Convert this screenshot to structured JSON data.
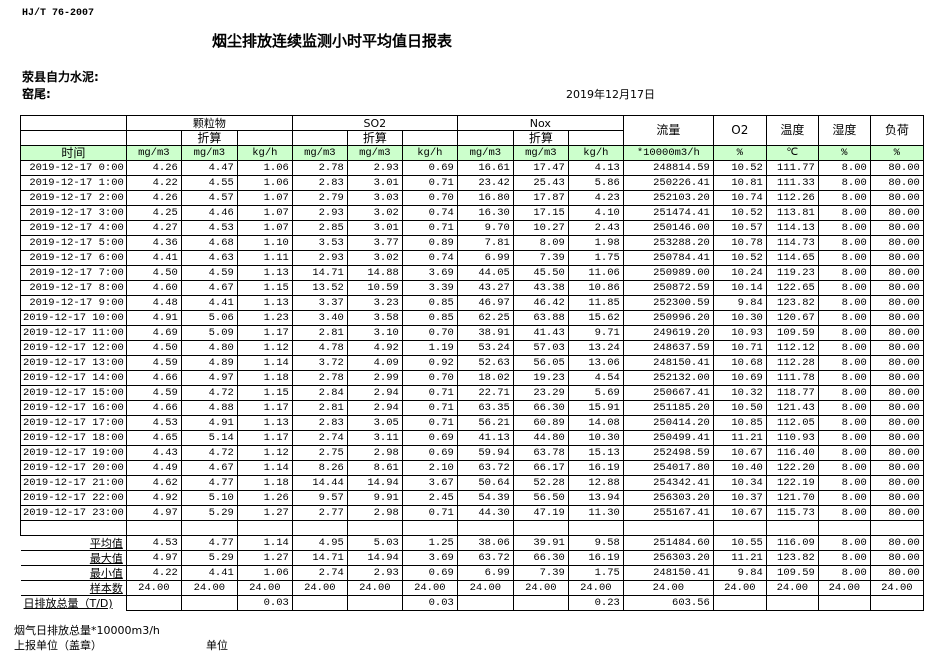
{
  "standard": "HJ/T  76-2007",
  "title": "烟尘排放连续监测小时平均值日报表",
  "company": "荥县自力水泥:",
  "kiln": "窑尾:",
  "date": "2019年12月17日",
  "header": {
    "particulate": "颗粒物",
    "so2": "SO2",
    "nox": "Nox",
    "converted": "折算",
    "flow": "流量",
    "o2": "O2",
    "temperature": "温度",
    "humidity": "湿度",
    "load": "负荷",
    "time": "时间",
    "units": [
      "mg/m3",
      "mg/m3",
      "kg/h",
      "mg/m3",
      "mg/m3",
      "kg/h",
      "mg/m3",
      "mg/m3",
      "kg/h",
      "*10000m3/h",
      "%",
      "℃",
      "%",
      "%"
    ]
  },
  "rows": [
    [
      "2019-12-17 0:00",
      "4.26",
      "4.47",
      "1.06",
      "2.78",
      "2.93",
      "0.69",
      "16.61",
      "17.47",
      "4.13",
      "248814.59",
      "10.52",
      "111.77",
      "8.00",
      "80.00"
    ],
    [
      "2019-12-17 1:00",
      "4.22",
      "4.55",
      "1.06",
      "2.83",
      "3.01",
      "0.71",
      "23.42",
      "25.43",
      "5.86",
      "250226.41",
      "10.81",
      "111.33",
      "8.00",
      "80.00"
    ],
    [
      "2019-12-17 2:00",
      "4.26",
      "4.57",
      "1.07",
      "2.79",
      "3.03",
      "0.70",
      "16.80",
      "17.87",
      "4.23",
      "252103.20",
      "10.74",
      "112.26",
      "8.00",
      "80.00"
    ],
    [
      "2019-12-17 3:00",
      "4.25",
      "4.46",
      "1.07",
      "2.93",
      "3.02",
      "0.74",
      "16.30",
      "17.15",
      "4.10",
      "251474.41",
      "10.52",
      "113.81",
      "8.00",
      "80.00"
    ],
    [
      "2019-12-17 4:00",
      "4.27",
      "4.53",
      "1.07",
      "2.85",
      "3.01",
      "0.71",
      "9.70",
      "10.27",
      "2.43",
      "250146.00",
      "10.57",
      "114.13",
      "8.00",
      "80.00"
    ],
    [
      "2019-12-17 5:00",
      "4.36",
      "4.68",
      "1.10",
      "3.53",
      "3.77",
      "0.89",
      "7.81",
      "8.09",
      "1.98",
      "253288.20",
      "10.78",
      "114.73",
      "8.00",
      "80.00"
    ],
    [
      "2019-12-17 6:00",
      "4.41",
      "4.63",
      "1.11",
      "2.93",
      "3.02",
      "0.74",
      "6.99",
      "7.39",
      "1.75",
      "250784.41",
      "10.52",
      "114.65",
      "8.00",
      "80.00"
    ],
    [
      "2019-12-17 7:00",
      "4.50",
      "4.59",
      "1.13",
      "14.71",
      "14.88",
      "3.69",
      "44.05",
      "45.50",
      "11.06",
      "250989.00",
      "10.24",
      "119.23",
      "8.00",
      "80.00"
    ],
    [
      "2019-12-17 8:00",
      "4.60",
      "4.67",
      "1.15",
      "13.52",
      "10.59",
      "3.39",
      "43.27",
      "43.38",
      "10.86",
      "250872.59",
      "10.14",
      "122.65",
      "8.00",
      "80.00"
    ],
    [
      "2019-12-17 9:00",
      "4.48",
      "4.41",
      "1.13",
      "3.37",
      "3.23",
      "0.85",
      "46.97",
      "46.42",
      "11.85",
      "252300.59",
      "9.84",
      "123.82",
      "8.00",
      "80.00"
    ],
    [
      "2019-12-17 10:00",
      "4.91",
      "5.06",
      "1.23",
      "3.40",
      "3.58",
      "0.85",
      "62.25",
      "63.88",
      "15.62",
      "250996.20",
      "10.30",
      "120.67",
      "8.00",
      "80.00"
    ],
    [
      "2019-12-17 11:00",
      "4.69",
      "5.09",
      "1.17",
      "2.81",
      "3.10",
      "0.70",
      "38.91",
      "41.43",
      "9.71",
      "249619.20",
      "10.93",
      "109.59",
      "8.00",
      "80.00"
    ],
    [
      "2019-12-17 12:00",
      "4.50",
      "4.80",
      "1.12",
      "4.78",
      "4.92",
      "1.19",
      "53.24",
      "57.03",
      "13.24",
      "248637.59",
      "10.71",
      "112.12",
      "8.00",
      "80.00"
    ],
    [
      "2019-12-17 13:00",
      "4.59",
      "4.89",
      "1.14",
      "3.72",
      "4.09",
      "0.92",
      "52.63",
      "56.05",
      "13.06",
      "248150.41",
      "10.68",
      "112.28",
      "8.00",
      "80.00"
    ],
    [
      "2019-12-17 14:00",
      "4.66",
      "4.97",
      "1.18",
      "2.78",
      "2.99",
      "0.70",
      "18.02",
      "19.23",
      "4.54",
      "252132.00",
      "10.69",
      "111.78",
      "8.00",
      "80.00"
    ],
    [
      "2019-12-17 15:00",
      "4.59",
      "4.72",
      "1.15",
      "2.84",
      "2.94",
      "0.71",
      "22.71",
      "23.29",
      "5.69",
      "250667.41",
      "10.32",
      "118.77",
      "8.00",
      "80.00"
    ],
    [
      "2019-12-17 16:00",
      "4.66",
      "4.88",
      "1.17",
      "2.81",
      "2.94",
      "0.71",
      "63.35",
      "66.30",
      "15.91",
      "251185.20",
      "10.50",
      "121.43",
      "8.00",
      "80.00"
    ],
    [
      "2019-12-17 17:00",
      "4.53",
      "4.91",
      "1.13",
      "2.83",
      "3.05",
      "0.71",
      "56.21",
      "60.89",
      "14.08",
      "250414.20",
      "10.85",
      "112.05",
      "8.00",
      "80.00"
    ],
    [
      "2019-12-17 18:00",
      "4.65",
      "5.14",
      "1.17",
      "2.74",
      "3.11",
      "0.69",
      "41.13",
      "44.80",
      "10.30",
      "250499.41",
      "11.21",
      "110.93",
      "8.00",
      "80.00"
    ],
    [
      "2019-12-17 19:00",
      "4.43",
      "4.72",
      "1.12",
      "2.75",
      "2.98",
      "0.69",
      "59.94",
      "63.78",
      "15.13",
      "252498.59",
      "10.67",
      "116.40",
      "8.00",
      "80.00"
    ],
    [
      "2019-12-17 20:00",
      "4.49",
      "4.67",
      "1.14",
      "8.26",
      "8.61",
      "2.10",
      "63.72",
      "66.17",
      "16.19",
      "254017.80",
      "10.40",
      "122.20",
      "8.00",
      "80.00"
    ],
    [
      "2019-12-17 21:00",
      "4.62",
      "4.77",
      "1.18",
      "14.44",
      "14.94",
      "3.67",
      "50.64",
      "52.28",
      "12.88",
      "254342.41",
      "10.34",
      "122.19",
      "8.00",
      "80.00"
    ],
    [
      "2019-12-17 22:00",
      "4.92",
      "5.10",
      "1.26",
      "9.57",
      "9.91",
      "2.45",
      "54.39",
      "56.50",
      "13.94",
      "256303.20",
      "10.37",
      "121.70",
      "8.00",
      "80.00"
    ],
    [
      "2019-12-17 23:00",
      "4.97",
      "5.29",
      "1.27",
      "2.77",
      "2.98",
      "0.71",
      "44.30",
      "47.19",
      "11.30",
      "255167.41",
      "10.67",
      "115.73",
      "8.00",
      "80.00"
    ]
  ],
  "summary": [
    [
      "平均值",
      "4.53",
      "4.77",
      "1.14",
      "4.95",
      "5.03",
      "1.25",
      "38.06",
      "39.91",
      "9.58",
      "251484.60",
      "10.55",
      "116.09",
      "8.00",
      "80.00"
    ],
    [
      "最大值",
      "4.97",
      "5.29",
      "1.27",
      "14.71",
      "14.94",
      "3.69",
      "63.72",
      "66.30",
      "16.19",
      "256303.20",
      "11.21",
      "123.82",
      "8.00",
      "80.00"
    ],
    [
      "最小值",
      "4.22",
      "4.41",
      "1.06",
      "2.74",
      "2.93",
      "0.69",
      "6.99",
      "7.39",
      "1.75",
      "248150.41",
      "9.84",
      "109.59",
      "8.00",
      "80.00"
    ],
    [
      "样本数",
      "24.00",
      "24.00",
      "24.00",
      "24.00",
      "24.00",
      "24.00",
      "24.00",
      "24.00",
      "24.00",
      "24.00",
      "24.00",
      "24.00",
      "24.00",
      "24.00"
    ],
    [
      "日排放总量（T/D)",
      "",
      "",
      "0.03",
      "",
      "",
      "0.03",
      "",
      "",
      "0.23",
      "603.56",
      "",
      "",
      "",
      ""
    ]
  ],
  "footer": {
    "flue_gas_total": "烟气日排放总量*10000m3/h",
    "reporting_unit": "上报单位（盖章）",
    "unit": "单位"
  }
}
